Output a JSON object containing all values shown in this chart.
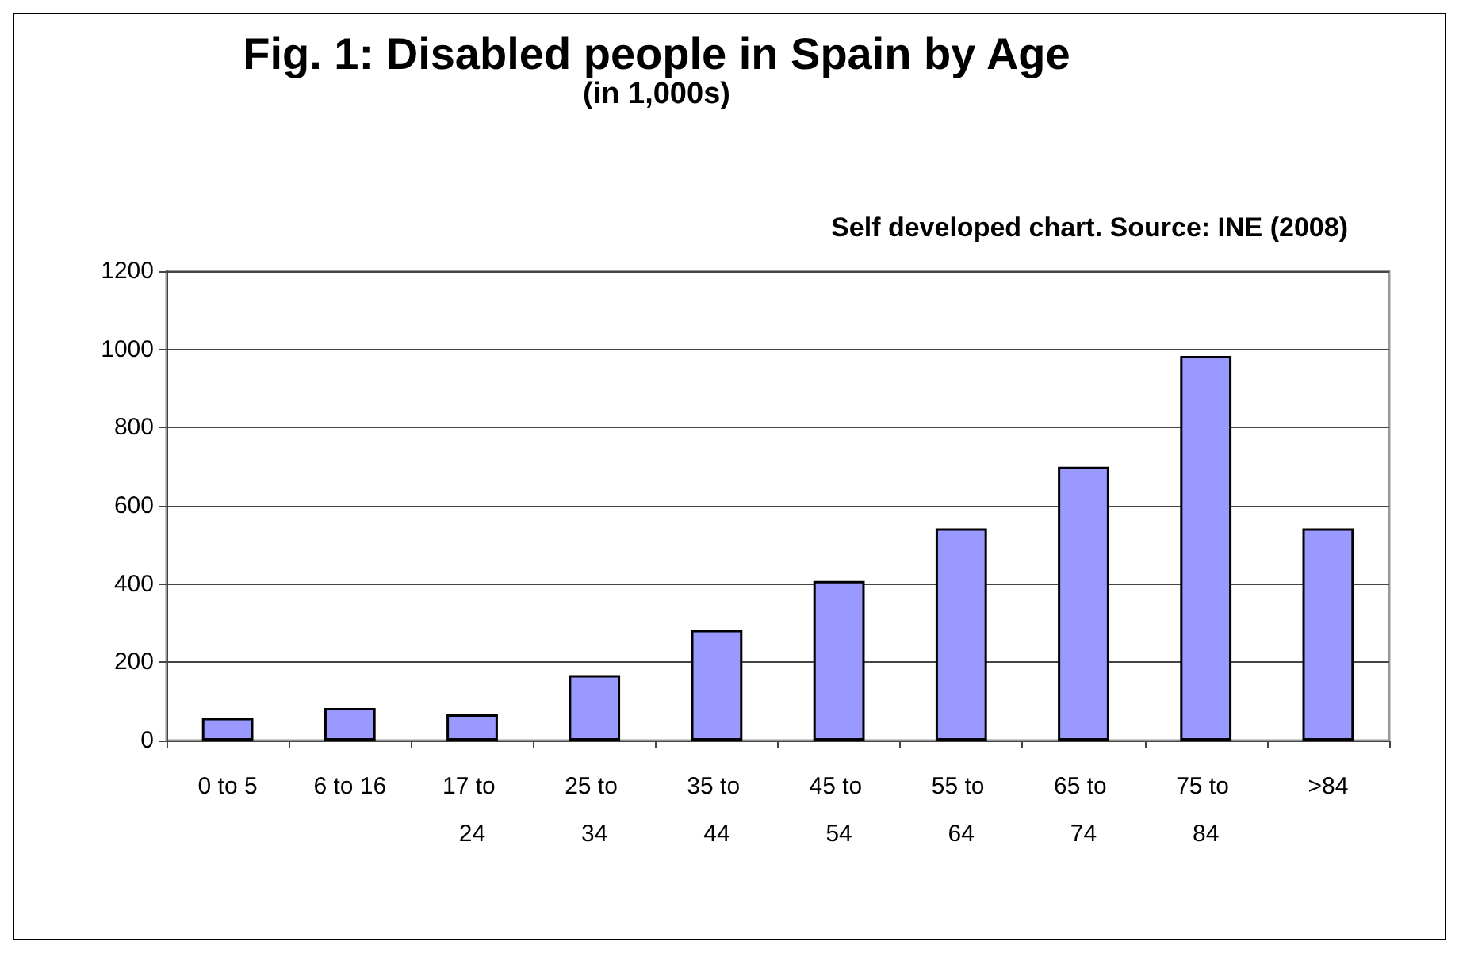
{
  "chart_data": {
    "type": "bar",
    "title": "Fig. 1: Disabled people in Spain by Age",
    "subtitle": "(in 1,000s)",
    "annotations": [
      "Self developed chart. Source: INE (2008)"
    ],
    "categories": [
      "0 to 5",
      "6 to 16",
      "17 to 24",
      "25 to 34",
      "35 to 44",
      "45 to 54",
      "55 to 64",
      "65 to 74",
      "75 to 84",
      ">84"
    ],
    "values": [
      58,
      83,
      67,
      167,
      283,
      408,
      542,
      700,
      983,
      542
    ],
    "color": "#9999ff",
    "ylim": [
      0,
      1200
    ],
    "yticks": [
      0,
      200,
      400,
      600,
      800,
      1000,
      1200
    ],
    "grid": "y"
  }
}
